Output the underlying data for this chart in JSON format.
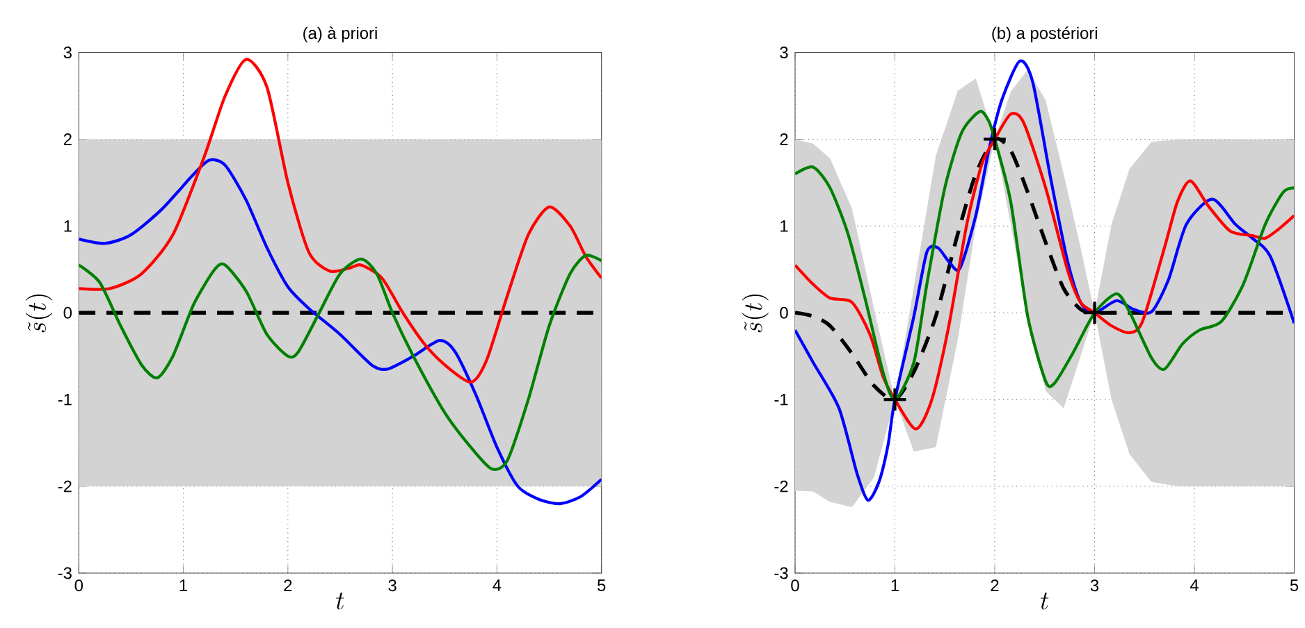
{
  "chart_data": [
    {
      "type": "line",
      "title": "(a) à priori",
      "xlabel": "t",
      "ylabel": "\\tilde{s}(t)",
      "xlim": [
        0,
        5
      ],
      "ylim": [
        -3,
        3
      ],
      "xticks": [
        0,
        1,
        2,
        3,
        4,
        5
      ],
      "yticks": [
        -3,
        -2,
        -1,
        0,
        1,
        2,
        3
      ],
      "grid": true,
      "bands": [
        {
          "axis": "y",
          "from": -2,
          "to": 2,
          "color": "#d3d3d3"
        }
      ],
      "series": [
        {
          "color": "#000000",
          "line_style": "dashed",
          "x": [
            0,
            5
          ],
          "values": [
            0,
            0
          ]
        },
        {
          "color": "#0000ff",
          "x": [
            0,
            0.25,
            0.5,
            0.8,
            1.1,
            1.25,
            1.4,
            1.6,
            1.8,
            2.0,
            2.2,
            2.5,
            2.8,
            2.95,
            3.2,
            3.45,
            3.6,
            3.8,
            4.0,
            4.2,
            4.4,
            4.6,
            4.8,
            5
          ],
          "values": [
            0.85,
            0.8,
            0.9,
            1.2,
            1.6,
            1.76,
            1.7,
            1.3,
            0.75,
            0.3,
            0.05,
            -0.25,
            -0.6,
            -0.65,
            -0.5,
            -0.32,
            -0.45,
            -0.95,
            -1.55,
            -2.0,
            -2.15,
            -2.2,
            -2.12,
            -1.92
          ]
        },
        {
          "color": "#ff0000",
          "x": [
            0,
            0.3,
            0.6,
            0.9,
            1.2,
            1.4,
            1.6,
            1.8,
            2.0,
            2.2,
            2.4,
            2.6,
            2.7,
            2.9,
            3.1,
            3.3,
            3.5,
            3.75,
            3.9,
            4.1,
            4.3,
            4.5,
            4.7,
            4.85,
            5
          ],
          "values": [
            0.28,
            0.28,
            0.45,
            0.9,
            1.8,
            2.5,
            2.92,
            2.6,
            1.5,
            0.7,
            0.48,
            0.52,
            0.55,
            0.4,
            0.0,
            -0.35,
            -0.6,
            -0.8,
            -0.55,
            0.2,
            0.9,
            1.22,
            1.0,
            0.65,
            0.4
          ]
        },
        {
          "color": "#008000",
          "x": [
            0,
            0.2,
            0.4,
            0.6,
            0.75,
            0.9,
            1.1,
            1.3,
            1.4,
            1.6,
            1.8,
            2.0,
            2.1,
            2.3,
            2.5,
            2.7,
            2.85,
            3.0,
            3.2,
            3.5,
            3.75,
            3.95,
            4.1,
            4.3,
            4.5,
            4.7,
            4.85,
            5
          ],
          "values": [
            0.55,
            0.35,
            -0.15,
            -0.6,
            -0.75,
            -0.5,
            0.1,
            0.5,
            0.55,
            0.25,
            -0.25,
            -0.5,
            -0.45,
            0.0,
            0.45,
            0.62,
            0.45,
            0.0,
            -0.5,
            -1.15,
            -1.55,
            -1.8,
            -1.7,
            -1.0,
            -0.15,
            0.45,
            0.66,
            0.6
          ]
        }
      ]
    },
    {
      "type": "line",
      "title": "(b) a postériori",
      "xlabel": "t",
      "ylabel": "\\tilde{s}(t)",
      "xlim": [
        0,
        5
      ],
      "ylim": [
        -3,
        3
      ],
      "xticks": [
        0,
        1,
        2,
        3,
        4,
        5
      ],
      "yticks": [
        -3,
        -2,
        -1,
        0,
        1,
        2,
        3
      ],
      "grid": true,
      "series": [
        {
          "color": "#000000",
          "line_style": "dashed",
          "x": [
            0,
            0.18,
            0.35,
            0.57,
            0.79,
            1,
            1.19,
            1.41,
            1.63,
            1.81,
            2,
            2.16,
            2.33,
            2.51,
            2.69,
            2.86,
            3,
            3.17,
            3.35,
            3.57,
            3.83,
            5
          ],
          "values": [
            0,
            -0.04,
            -0.15,
            -0.47,
            -0.84,
            -1,
            -0.68,
            -0.04,
            0.91,
            1.6,
            2,
            1.87,
            1.39,
            0.81,
            0.28,
            0.04,
            0,
            0,
            0,
            0,
            0,
            0
          ],
          "lower": [
            -2.05,
            -2.06,
            -2.18,
            -2.24,
            -1.9,
            -1,
            -1.6,
            -1.55,
            -0.31,
            1.0,
            2.0,
            1.02,
            -0.05,
            -0.9,
            -1.1,
            -0.5,
            0,
            -1.0,
            -1.63,
            -1.95,
            -2.0,
            -2.0
          ],
          "upper": [
            2.0,
            1.95,
            1.78,
            1.2,
            0.05,
            -1,
            0.3,
            1.81,
            2.56,
            2.7,
            2.0,
            2.55,
            2.8,
            2.45,
            1.6,
            0.75,
            0,
            1.02,
            1.66,
            1.97,
            2.0,
            2.0
          ]
        },
        {
          "color": "#0000ff",
          "x": [
            0,
            0.18,
            0.44,
            0.62,
            0.73,
            0.84,
            0.93,
            1,
            1.19,
            1.32,
            1.43,
            1.54,
            1.65,
            1.81,
            1.94,
            2.07,
            2.25,
            2.38,
            2.56,
            2.73,
            2.86,
            3,
            3.22,
            3.39,
            3.57,
            3.74,
            3.92,
            4.18,
            4.41,
            4.58,
            4.76,
            5
          ],
          "values": [
            -0.2,
            -0.57,
            -1.1,
            -1.85,
            -2.16,
            -1.95,
            -1.53,
            -1,
            -0.04,
            0.7,
            0.75,
            0.59,
            0.51,
            1.12,
            1.87,
            2.45,
            2.9,
            2.66,
            1.55,
            0.59,
            0.12,
            0,
            0.14,
            0.04,
            0.01,
            0.38,
            1.02,
            1.31,
            1.02,
            0.86,
            0.65,
            -0.12
          ]
        },
        {
          "color": "#ff0000",
          "x": [
            0,
            0.18,
            0.35,
            0.57,
            0.75,
            0.88,
            1,
            1.21,
            1.37,
            1.54,
            1.72,
            1.87,
            2,
            2.16,
            2.29,
            2.51,
            2.73,
            2.86,
            3,
            3.17,
            3.35,
            3.48,
            3.7,
            3.83,
            3.96,
            4.14,
            4.36,
            4.58,
            4.71,
            4.85,
            5
          ],
          "values": [
            0.55,
            0.33,
            0.17,
            0.12,
            -0.25,
            -0.73,
            -1,
            -1.34,
            -1.0,
            -0.15,
            1.02,
            1.71,
            2,
            2.29,
            2.19,
            1.44,
            0.49,
            0.12,
            0,
            -0.15,
            -0.23,
            -0.1,
            0.75,
            1.28,
            1.52,
            1.23,
            0.94,
            0.89,
            0.86,
            0.97,
            1.12
          ]
        },
        {
          "color": "#008000",
          "x": [
            0,
            0.18,
            0.35,
            0.53,
            0.7,
            0.88,
            1,
            1.19,
            1.32,
            1.5,
            1.67,
            1.85,
            1.94,
            2,
            2.16,
            2.33,
            2.51,
            2.6,
            2.78,
            3,
            3.22,
            3.35,
            3.57,
            3.7,
            3.88,
            4.05,
            4.27,
            4.49,
            4.71,
            4.89,
            5
          ],
          "values": [
            1.6,
            1.68,
            1.44,
            0.91,
            0.17,
            -0.68,
            -1,
            -0.57,
            0.33,
            1.44,
            2.08,
            2.32,
            2.21,
            2,
            1.28,
            -0.04,
            -0.79,
            -0.81,
            -0.47,
            0,
            0.22,
            0.01,
            -0.52,
            -0.65,
            -0.36,
            -0.2,
            -0.1,
            0.33,
            1.02,
            1.39,
            1.44
          ]
        },
        {
          "type": "scatter",
          "color": "#000000",
          "marker": "cross",
          "x": [
            1,
            2,
            3
          ],
          "values": [
            -1,
            2,
            0
          ]
        }
      ]
    }
  ]
}
